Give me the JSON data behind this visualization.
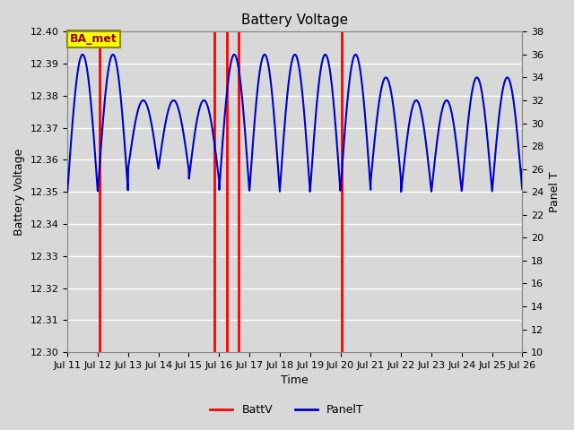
{
  "title": "Battery Voltage",
  "xlabel": "Time",
  "ylabel_left": "Battery Voltage",
  "ylabel_right": "Panel T",
  "xlim": [
    0,
    15
  ],
  "ylim_left": [
    12.3,
    12.4
  ],
  "ylim_right": [
    10,
    38
  ],
  "yticks_left": [
    12.3,
    12.31,
    12.32,
    12.33,
    12.34,
    12.35,
    12.36,
    12.37,
    12.38,
    12.39,
    12.4
  ],
  "yticks_right": [
    10,
    12,
    14,
    16,
    18,
    20,
    22,
    24,
    26,
    28,
    30,
    32,
    34,
    36,
    38
  ],
  "xtick_labels": [
    "Jul 11",
    "Jul 12",
    "Jul 13",
    "Jul 14",
    "Jul 15",
    "Jul 16",
    "Jul 17",
    "Jul 18",
    "Jul 19",
    "Jul 20",
    "Jul 21",
    "Jul 22",
    "Jul 23",
    "Jul 24",
    "Jul 25",
    "Jul 26"
  ],
  "xtick_positions": [
    0,
    1,
    2,
    3,
    4,
    5,
    6,
    7,
    8,
    9,
    10,
    11,
    12,
    13,
    14,
    15
  ],
  "bg_color": "#d8d8d8",
  "plot_bg_color": "#d8d8d8",
  "grid_color": "#ffffff",
  "batt_v_color": "#ff0000",
  "panel_t_color": "#0000cc",
  "annotation_text": "BA_met",
  "annotation_box_color": "#ffff00",
  "annotation_border_color": "#888800",
  "red_vlines": [
    1.05,
    4.85,
    5.25,
    5.65,
    9.05
  ],
  "batt_hline": 12.4
}
